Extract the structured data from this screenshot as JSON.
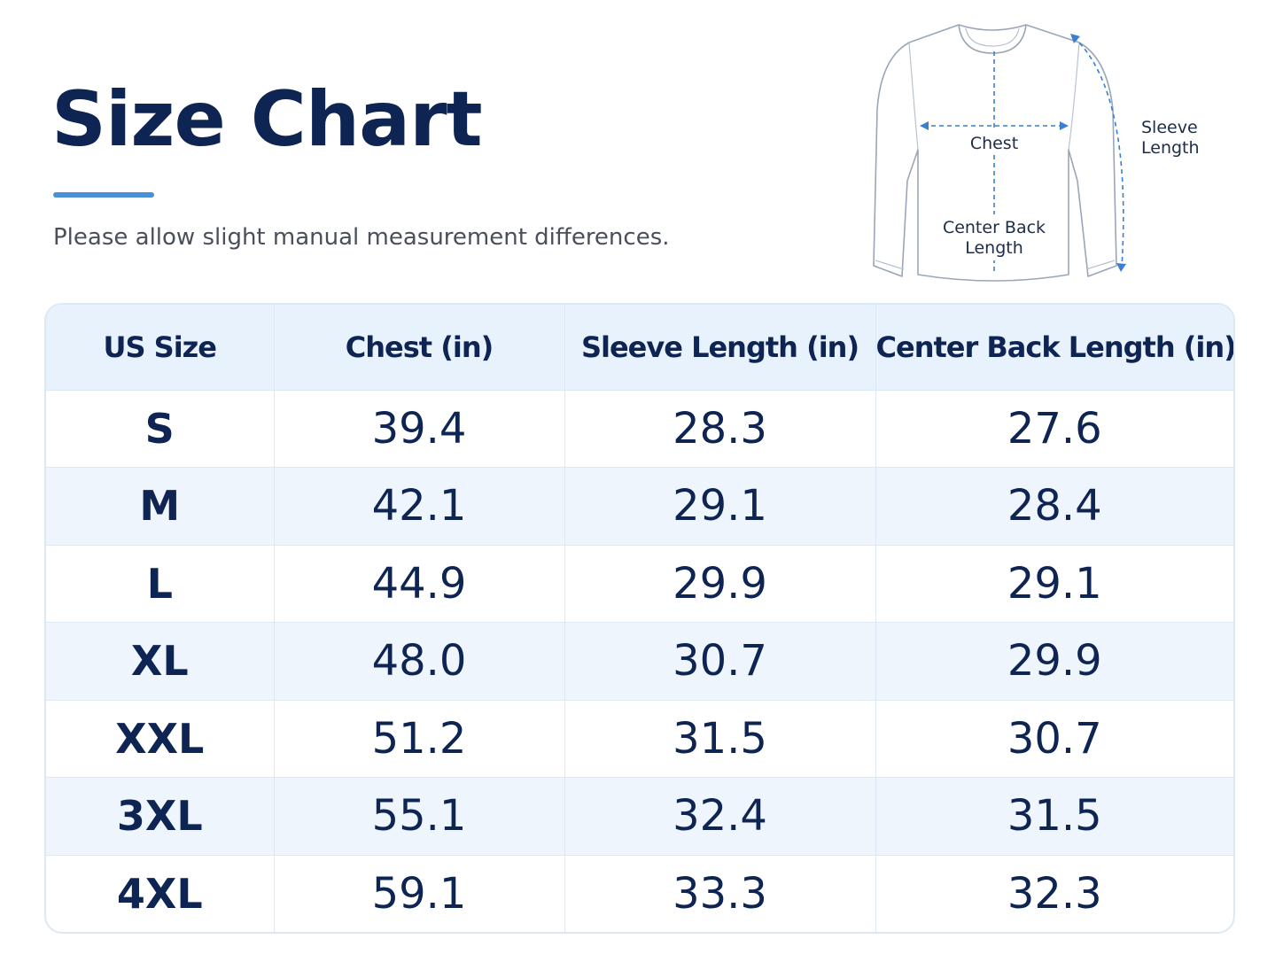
{
  "header": {
    "title": "Size Chart",
    "subtitle": "Please allow slight manual measurement differences."
  },
  "diagram": {
    "chest_label": "Chest",
    "back_label_line1": "Center Back",
    "back_label_line2": "Length",
    "sleeve_label_line1": "Sleeve",
    "sleeve_label_line2": "Length",
    "icon": "long-sleeve-shirt-icon"
  },
  "table": {
    "headers": [
      "US Size",
      "Chest (in)",
      "Sleeve Length (in)",
      "Center Back Length (in)"
    ],
    "rows": [
      [
        "S",
        "39.4",
        "28.3",
        "27.6"
      ],
      [
        "M",
        "42.1",
        "29.1",
        "28.4"
      ],
      [
        "L",
        "44.9",
        "29.9",
        "29.1"
      ],
      [
        "XL",
        "48.0",
        "30.7",
        "29.9"
      ],
      [
        "XXL",
        "51.2",
        "31.5",
        "30.7"
      ],
      [
        "3XL",
        "55.1",
        "32.4",
        "31.5"
      ],
      [
        "4XL",
        "59.1",
        "33.3",
        "32.3"
      ]
    ]
  },
  "colors": {
    "accent": "#4a90d9",
    "heading": "#0e2452",
    "header_bg": "#e8f2fc",
    "alt_row_bg": "#eef5fd",
    "border": "#dce8f5",
    "dimension_line": "#3a7fd0"
  }
}
